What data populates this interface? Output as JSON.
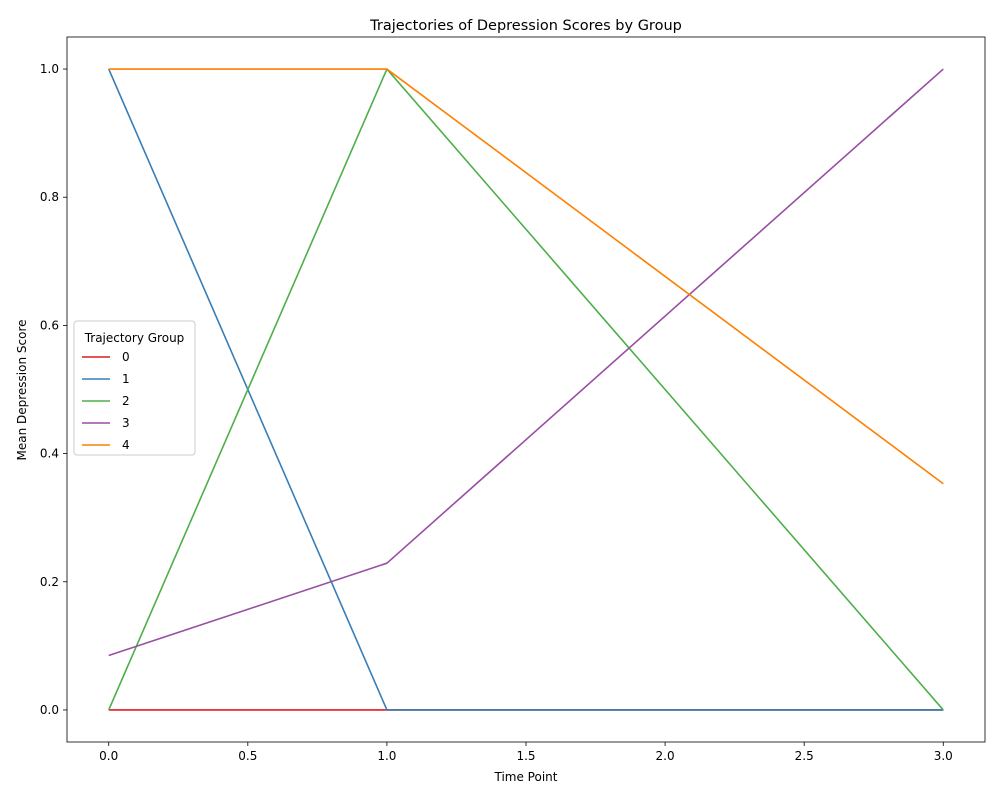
{
  "chart_data": {
    "type": "line",
    "title": "Trajectories of Depression Scores by Group",
    "xlabel": "Time Point",
    "ylabel": "Mean Depression Score",
    "x": [
      0,
      1,
      3
    ],
    "xlim": [
      -0.15,
      3.15
    ],
    "ylim": [
      -0.05,
      1.05
    ],
    "xticks": [
      0.0,
      0.5,
      1.0,
      1.5,
      2.0,
      2.5,
      3.0
    ],
    "xtick_labels": [
      "0.0",
      "0.5",
      "1.0",
      "1.5",
      "2.0",
      "2.5",
      "3.0"
    ],
    "yticks": [
      0.0,
      0.2,
      0.4,
      0.6,
      0.8,
      1.0
    ],
    "ytick_labels": [
      "0.0",
      "0.2",
      "0.4",
      "0.6",
      "0.8",
      "1.0"
    ],
    "grid": false,
    "legend": {
      "title": "Trajectory Group",
      "placement": "center-left"
    },
    "series": [
      {
        "name": "0",
        "color": "#e41a1c",
        "values": [
          0.0,
          0.0,
          0.0
        ]
      },
      {
        "name": "1",
        "color": "#377eb8",
        "values": [
          1.0,
          0.0,
          0.0
        ]
      },
      {
        "name": "2",
        "color": "#4daf4a",
        "values": [
          0.0,
          1.0,
          0.0
        ]
      },
      {
        "name": "3",
        "color": "#984ea3",
        "values": [
          0.085,
          0.229,
          1.0
        ]
      },
      {
        "name": "4",
        "color": "#ff7f00",
        "values": [
          1.0,
          1.0,
          0.353
        ]
      }
    ]
  }
}
